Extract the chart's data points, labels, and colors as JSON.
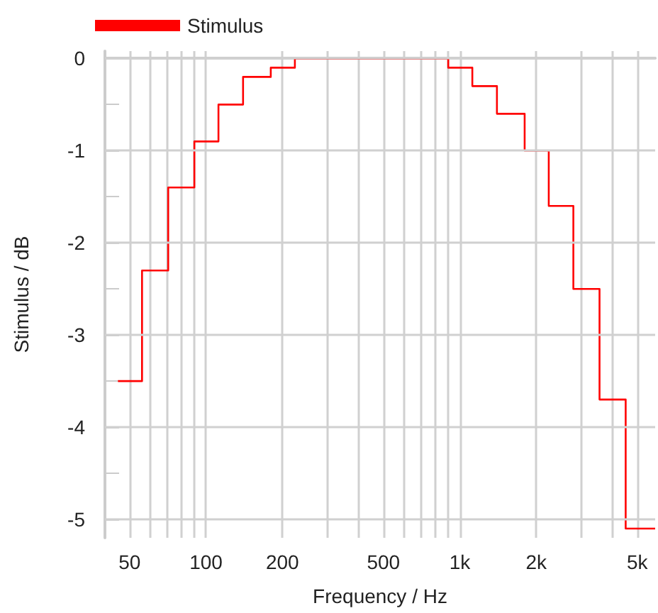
{
  "chart_data": {
    "type": "step",
    "xlabel": "Frequency / Hz",
    "ylabel": "Stimulus / dB",
    "log": "x",
    "x": [
      45,
      56,
      71,
      90,
      112,
      140,
      180,
      224,
      900,
      1120,
      1400,
      1800,
      2240,
      2800,
      3550,
      4500,
      5880
    ],
    "series": [
      {
        "name": "Stimulus",
        "color": "#ff0000",
        "values": [
          -3.5,
          -2.3,
          -1.4,
          -0.9,
          -0.5,
          -0.2,
          -0.1,
          0,
          -0.1,
          -0.3,
          -0.6,
          -1.0,
          -1.6,
          -2.5,
          -3.7,
          -5.1,
          -5.1
        ]
      }
    ],
    "xlim": [
      40,
      5880
    ],
    "xticks": [
      {
        "value": 50,
        "label": "50"
      },
      {
        "value": 60,
        "label": null
      },
      {
        "value": 70,
        "label": null
      },
      {
        "value": 80,
        "label": null
      },
      {
        "value": 90,
        "label": null
      },
      {
        "value": 100,
        "label": "100"
      },
      {
        "value": 200,
        "label": "200"
      },
      {
        "value": 300,
        "label": null
      },
      {
        "value": 400,
        "label": null
      },
      {
        "value": 500,
        "label": "500"
      },
      {
        "value": 600,
        "label": null
      },
      {
        "value": 700,
        "label": null
      },
      {
        "value": 800,
        "label": null
      },
      {
        "value": 900,
        "label": null
      },
      {
        "value": 1000,
        "label": "1k"
      },
      {
        "value": 2000,
        "label": "2k"
      },
      {
        "value": 3000,
        "label": null
      },
      {
        "value": 4000,
        "label": null
      },
      {
        "value": 5000,
        "label": "5k"
      }
    ],
    "ylim": [
      -5.2,
      0.08
    ],
    "yticks": [
      -5,
      {
        "value": -4.5,
        "label": null
      },
      -4,
      {
        "value": -3.5,
        "label": null
      },
      -3,
      {
        "value": -2.5,
        "label": null
      },
      -2,
      {
        "value": -1.5,
        "label": null
      },
      -1,
      {
        "value": -0.5,
        "label": null
      },
      0
    ],
    "grid": true,
    "legend": "top left",
    "line_style": "solid",
    "marker": "none"
  }
}
